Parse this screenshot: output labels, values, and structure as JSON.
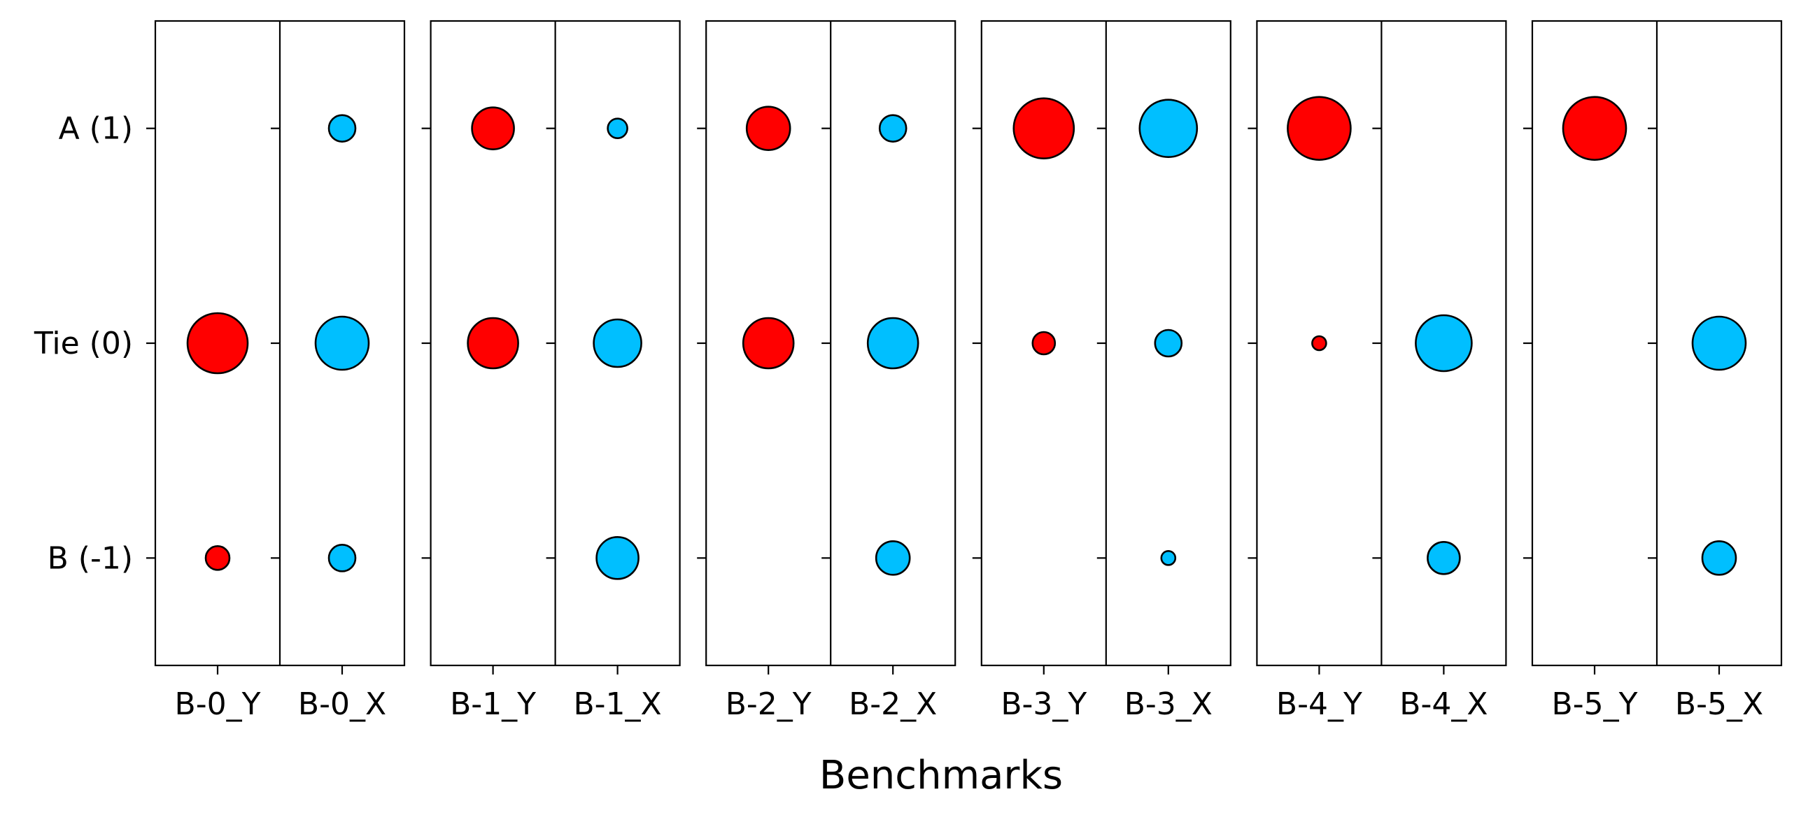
{
  "chart_data": {
    "type": "scatter",
    "xlabel": "Benchmarks",
    "y_categories": [
      {
        "label": "A (1)",
        "value": 1
      },
      {
        "label": "Tie (0)",
        "value": 0
      },
      {
        "label": "B (-1)",
        "value": -1
      }
    ],
    "ylim": [
      -1.5,
      1.5
    ],
    "colors": {
      "Y": "#ff0000",
      "X": "#00bfff"
    },
    "size_scale_max": 43,
    "benchmarks": [
      {
        "name": "B-0",
        "columns": [
          {
            "label": "B-0_Y",
            "variant": "Y",
            "sizes": {
              "1": 0,
              "0": 43,
              "-1": 17
            }
          },
          {
            "label": "B-0_X",
            "variant": "X",
            "sizes": {
              "1": 19,
              "0": 38,
              "-1": 19
            }
          }
        ]
      },
      {
        "name": "B-1",
        "columns": [
          {
            "label": "B-1_Y",
            "variant": "Y",
            "sizes": {
              "1": 30,
              "0": 36,
              "-1": 0
            }
          },
          {
            "label": "B-1_X",
            "variant": "X",
            "sizes": {
              "1": 14,
              "0": 34,
              "-1": 30
            }
          }
        ]
      },
      {
        "name": "B-2",
        "columns": [
          {
            "label": "B-2_Y",
            "variant": "Y",
            "sizes": {
              "1": 31,
              "0": 36,
              "-1": 0
            }
          },
          {
            "label": "B-2_X",
            "variant": "X",
            "sizes": {
              "1": 19,
              "0": 36,
              "-1": 24
            }
          }
        ]
      },
      {
        "name": "B-3",
        "columns": [
          {
            "label": "B-3_Y",
            "variant": "Y",
            "sizes": {
              "1": 43,
              "0": 16,
              "-1": 0
            }
          },
          {
            "label": "B-3_X",
            "variant": "X",
            "sizes": {
              "1": 41,
              "0": 19,
              "-1": 10
            }
          }
        ]
      },
      {
        "name": "B-4",
        "columns": [
          {
            "label": "B-4_Y",
            "variant": "Y",
            "sizes": {
              "1": 45,
              "0": 10,
              "-1": 0
            }
          },
          {
            "label": "B-4_X",
            "variant": "X",
            "sizes": {
              "1": 0,
              "0": 40,
              "-1": 23
            }
          }
        ]
      },
      {
        "name": "B-5",
        "columns": [
          {
            "label": "B-5_Y",
            "variant": "Y",
            "sizes": {
              "1": 45,
              "0": 0,
              "-1": 0
            }
          },
          {
            "label": "B-5_X",
            "variant": "X",
            "sizes": {
              "1": 0,
              "0": 38,
              "-1": 24
            }
          }
        ]
      }
    ]
  }
}
